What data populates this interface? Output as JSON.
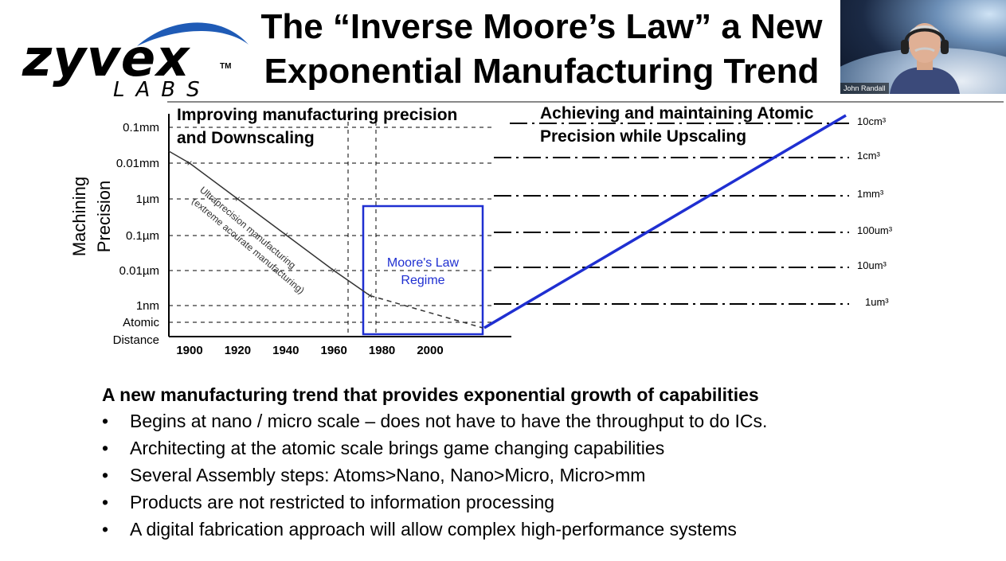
{
  "logo": {
    "word": "zyvex",
    "sub": "LABS",
    "tm": "TM"
  },
  "title": {
    "line1": "The “Inverse Moore’s Law” a New",
    "line2": "Exponential Manufacturing Trend"
  },
  "video": {
    "participant_name": "John Randall"
  },
  "chart_data": {
    "type": "line",
    "title": "",
    "ylabel_line1": "Machining",
    "ylabel_line2": "Precision",
    "x_ticks": [
      "1900",
      "1920",
      "1940",
      "1960",
      "1980",
      "2000"
    ],
    "y_ticks": [
      "0.1mm",
      "0.01mm",
      "1µm",
      "0.1µm",
      "0.01µm",
      "1nm",
      "Atomic",
      "Distance"
    ],
    "right_ticks": [
      "10cm³",
      "1cm³",
      "1mm³",
      "100um³",
      "10um³",
      "1um³"
    ],
    "heading_left_line1": "Improving manufacturing precision",
    "heading_left_line2": "and Downscaling",
    "heading_right_line1": "Achieving and maintaining Atomic",
    "heading_right_line2": "Precision while Upscaling",
    "curve_label_line1": "Ultraprecision manufacturing",
    "curve_label_line2": "(extreme accurate manufacturing)",
    "regime_label_line1": "Moore's Law",
    "regime_label_line2": "Regime",
    "series": [
      {
        "values": [
          [
            1900,
            0.01
          ],
          [
            1920,
            0.001
          ],
          [
            1940,
            0.0001
          ],
          [
            1960,
            1e-05
          ],
          [
            1975,
            2e-06
          ]
        ]
      },
      {
        "values": [
          [
            2018,
            3e-07
          ],
          [
            2075,
            0.1
          ]
        ]
      }
    ],
    "colors": {
      "upscaling_line": "#1f2fd1",
      "regime_box": "#1f2fd1"
    }
  },
  "bullets": {
    "lead": "A new manufacturing trend that provides exponential growth of capabilities",
    "marker": "•",
    "items": [
      "Begins at nano / micro scale – does not have to have the throughput to do ICs.",
      "Architecting at the atomic scale brings game changing capabilities",
      "Several Assembly steps: Atoms>Nano, Nano>Micro, Micro>mm",
      "Products are not restricted to information processing",
      "A digital fabrication approach will allow complex high-performance systems"
    ]
  }
}
